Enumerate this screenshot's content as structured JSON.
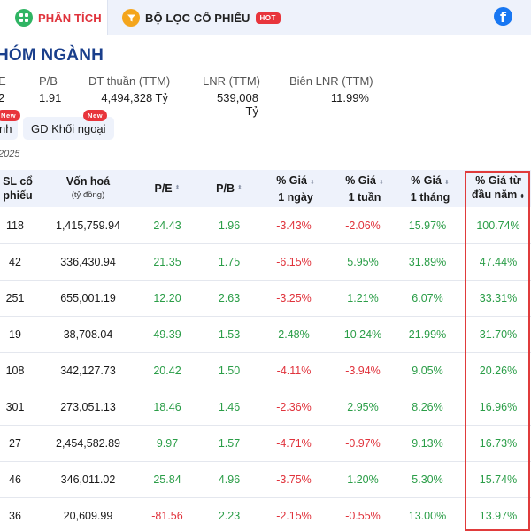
{
  "nav": {
    "tab_analysis": "PHÂN TÍCH",
    "tab_filter": "BỘ LỌC CỔ PHIẾU",
    "hot_badge": "HOT",
    "facebook_glyph": "f"
  },
  "header": {
    "title": "HÓM NGÀNH",
    "metrics": [
      {
        "label": "E",
        "value": "2"
      },
      {
        "label": "P/B",
        "value": "1.91"
      },
      {
        "label": "DT thuần (TTM)",
        "value": "4,494,328 Tỷ"
      },
      {
        "label": "LNR (TTM)",
        "value": "539,008 Tỷ"
      },
      {
        "label": "Biên LNR (TTM)",
        "value": "11.99%"
      }
    ]
  },
  "subtabs": [
    {
      "label": "nh",
      "badge": "New"
    },
    {
      "label": "GD Khối ngoại",
      "badge": "New"
    }
  ],
  "date_label": "2025",
  "table": {
    "columns": [
      {
        "line1": "SL cổ",
        "line2": "phiếu"
      },
      {
        "line1": "Vốn hoá",
        "line2": "(tỷ đồng)"
      },
      {
        "line1": "P/E",
        "line2": ""
      },
      {
        "line1": "P/B",
        "line2": ""
      },
      {
        "line1": "% Giá",
        "line2": "1 ngày"
      },
      {
        "line1": "% Giá",
        "line2": "1 tuần"
      },
      {
        "line1": "% Giá",
        "line2": "1 tháng"
      },
      {
        "line1": "% Giá từ",
        "line2": "đầu năm"
      }
    ],
    "rows": [
      {
        "sl": "118",
        "vonhoa": "1,415,759.94",
        "pe": "24.43",
        "pb": "1.96",
        "d1": "-3.43%",
        "w1": "-2.06%",
        "m1": "15.97%",
        "ytd": "100.74%"
      },
      {
        "sl": "42",
        "vonhoa": "336,430.94",
        "pe": "21.35",
        "pb": "1.75",
        "d1": "-6.15%",
        "w1": "5.95%",
        "m1": "31.89%",
        "ytd": "47.44%"
      },
      {
        "sl": "251",
        "vonhoa": "655,001.19",
        "pe": "12.20",
        "pb": "2.63",
        "d1": "-3.25%",
        "w1": "1.21%",
        "m1": "6.07%",
        "ytd": "33.31%"
      },
      {
        "sl": "19",
        "vonhoa": "38,708.04",
        "pe": "49.39",
        "pb": "1.53",
        "d1": "2.48%",
        "w1": "10.24%",
        "m1": "21.99%",
        "ytd": "31.70%"
      },
      {
        "sl": "108",
        "vonhoa": "342,127.73",
        "pe": "20.42",
        "pb": "1.50",
        "d1": "-4.11%",
        "w1": "-3.94%",
        "m1": "9.05%",
        "ytd": "20.26%"
      },
      {
        "sl": "301",
        "vonhoa": "273,051.13",
        "pe": "18.46",
        "pb": "1.46",
        "d1": "-2.36%",
        "w1": "2.95%",
        "m1": "8.26%",
        "ytd": "16.96%"
      },
      {
        "sl": "27",
        "vonhoa": "2,454,582.89",
        "pe": "9.97",
        "pb": "1.57",
        "d1": "-4.71%",
        "w1": "-0.97%",
        "m1": "9.13%",
        "ytd": "16.73%"
      },
      {
        "sl": "46",
        "vonhoa": "346,011.02",
        "pe": "25.84",
        "pb": "4.96",
        "d1": "-3.75%",
        "w1": "1.20%",
        "m1": "5.30%",
        "ytd": "15.74%"
      },
      {
        "sl": "36",
        "vonhoa": "20,609.99",
        "pe": "-81.56",
        "pb": "2.23",
        "d1": "-2.15%",
        "w1": "-0.55%",
        "m1": "13.00%",
        "ytd": "13.97%"
      }
    ]
  },
  "colors": {
    "positive": "#2a9d47",
    "negative": "#e0333c",
    "highlight": "#e03b3b",
    "title": "#1a3f8c"
  }
}
